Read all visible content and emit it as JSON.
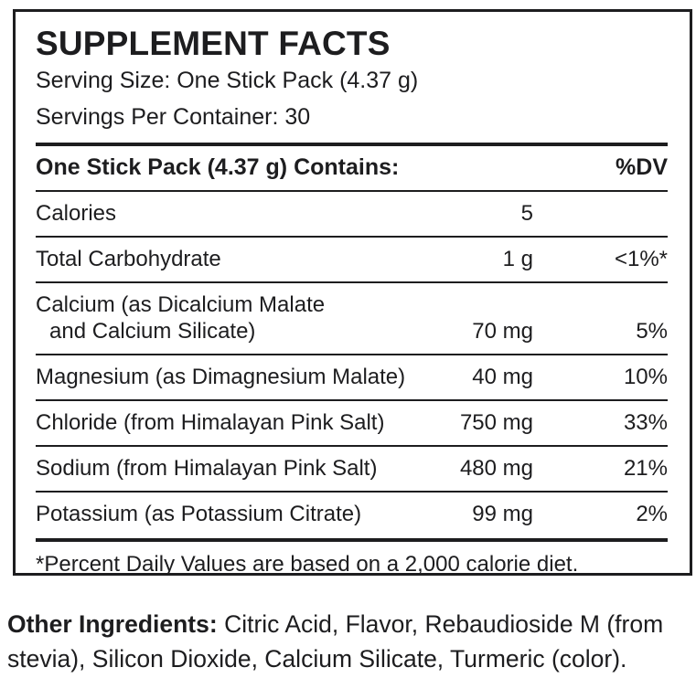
{
  "colors": {
    "text": "#1d1d1f",
    "background": "#ffffff",
    "border": "#1d1d1f"
  },
  "panel": {
    "title": "SUPPLEMENT FACTS",
    "serving_size": "Serving Size: One Stick Pack (4.37 g)",
    "servings_per_container": "Servings Per Container: 30",
    "header": {
      "contains": "One Stick Pack (4.37 g) Contains:",
      "dv": "%DV"
    },
    "rows": [
      {
        "label": "Calories",
        "amount": "5",
        "dv": ""
      },
      {
        "label": "Total Carbohydrate",
        "amount": "1 g",
        "dv": "<1%*"
      },
      {
        "label": [
          "Calcium (as Dicalcium Malate",
          "and Calcium Silicate)"
        ],
        "amount": "70 mg",
        "dv": "5%"
      },
      {
        "label": "Magnesium (as Dimagnesium Malate)",
        "amount": "40 mg",
        "dv": "10%"
      },
      {
        "label": "Chloride (from Himalayan Pink Salt)",
        "amount": "750 mg",
        "dv": "33%"
      },
      {
        "label": "Sodium (from Himalayan Pink Salt)",
        "amount": "480 mg",
        "dv": "21%"
      },
      {
        "label": "Potassium (as Potassium Citrate)",
        "amount": "99 mg",
        "dv": "2%"
      }
    ],
    "footnote": "*Percent Daily Values are based on a 2,000 calorie diet."
  },
  "other_ingredients": {
    "label": "Other Ingredients:",
    "text": "Citric Acid, Flavor, Rebaudioside M (from stevia), Silicon Dioxide, Calcium Silicate, Turmeric (color)."
  }
}
